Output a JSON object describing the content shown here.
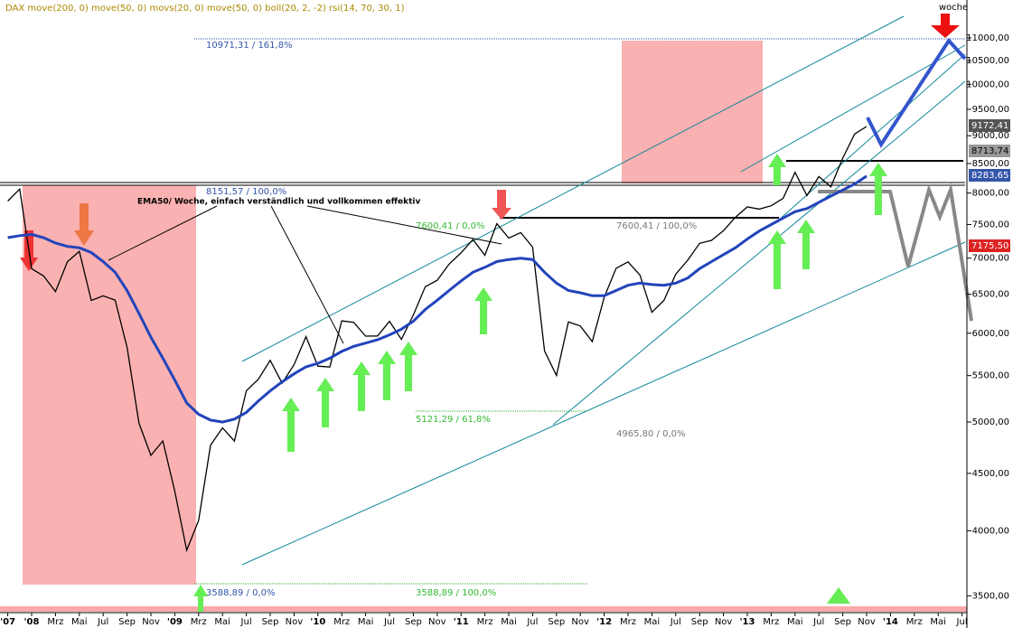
{
  "chart_data": {
    "type": "line",
    "title": "DAX move(200, 0) move(50, 0) movs(20, 0) move(50, 0) boll(20, 2, -2) rsi(14, 70, 30, 1)",
    "period": "woche",
    "log_scale": true,
    "grid": false,
    "categories": [
      "'07",
      null,
      "'08",
      null,
      "Mrz",
      null,
      "Mai",
      null,
      "Jul",
      null,
      "Sep",
      null,
      "Nov",
      null,
      "'09",
      null,
      "Mrz",
      null,
      "Mai",
      null,
      "Jul",
      null,
      "Sep",
      null,
      "Nov",
      null,
      "'10",
      null,
      "Mrz",
      null,
      "Mai",
      null,
      "Jul",
      null,
      "Sep",
      null,
      "Nov",
      null,
      "'11",
      null,
      "Mrz",
      null,
      "Mai",
      null,
      "Jul",
      null,
      "Sep",
      null,
      "Nov",
      null,
      "'12",
      null,
      "Mrz",
      null,
      "Mai",
      null,
      "Jul",
      null,
      "Sep",
      null,
      "Nov",
      null,
      "'13",
      null,
      "Mrz",
      null,
      "Mai",
      null,
      "Jul",
      null,
      "Sep",
      null,
      "Nov",
      null,
      "'14",
      null,
      "Mrz",
      null,
      "Mai",
      null,
      "Jul",
      null
    ],
    "series": [
      {
        "color": "#000000",
        "values": [
          7870,
          8067,
          6851,
          6748,
          6535,
          6949,
          7097,
          6418,
          6479,
          6422,
          5831,
          4988,
          4669,
          4810,
          4338,
          3843,
          4085,
          4769,
          4941,
          4809,
          5332,
          5458,
          5675,
          5415,
          5625,
          5957,
          5608,
          5598,
          6154,
          6136,
          5964,
          5966,
          6148,
          5925,
          6229,
          6601,
          6688,
          6914,
          7077,
          7272,
          7041,
          7514,
          7294,
          7376,
          7159,
          5785,
          5502,
          6141,
          6089,
          5898,
          6458,
          6856,
          6947,
          6761,
          6264,
          6416,
          6772,
          6970,
          7216,
          7260,
          7405,
          7612,
          7776,
          7741,
          7795,
          7914,
          8348,
          7959,
          8276,
          8103,
          8594,
          9033,
          9172,
          null,
          null,
          null,
          null,
          null,
          null,
          null,
          null,
          null
        ]
      },
      {
        "color": "#2244bb",
        "values": [
          7300,
          7330,
          7350,
          7300,
          7220,
          7170,
          7150,
          7080,
          6950,
          6800,
          6550,
          6250,
          5950,
          5700,
          5450,
          5200,
          5080,
          5020,
          5000,
          5030,
          5100,
          5220,
          5330,
          5430,
          5520,
          5600,
          5640,
          5700,
          5780,
          5840,
          5880,
          5920,
          5980,
          6050,
          6150,
          6300,
          6420,
          6550,
          6680,
          6800,
          6870,
          6950,
          6980,
          7000,
          6980,
          6800,
          6650,
          6550,
          6520,
          6480,
          6480,
          6550,
          6620,
          6650,
          6630,
          6620,
          6650,
          6720,
          6850,
          6950,
          7050,
          7150,
          7280,
          7400,
          7500,
          7600,
          7700,
          7750,
          7850,
          7950,
          8050,
          8150,
          8283,
          null,
          null,
          null,
          null,
          null,
          null,
          null,
          null,
          null
        ]
      }
    ],
    "ylim": [
      3400,
      11500
    ],
    "yticks": [
      {
        "value": 3500,
        "label": "3500,00"
      },
      {
        "value": 4000,
        "label": "4000,00"
      },
      {
        "value": 4500,
        "label": "4500,00"
      },
      {
        "value": 5000,
        "label": "5000,00"
      },
      {
        "value": 5500,
        "label": "5500,00"
      },
      {
        "value": 6000,
        "label": "6000,00"
      },
      {
        "value": 6500,
        "label": "6500,00"
      },
      {
        "value": 7000,
        "label": "7000,00"
      },
      {
        "value": 7500,
        "label": "7500,00"
      },
      {
        "value": 8000,
        "label": "8000,00"
      },
      {
        "value": 8500,
        "label": "8500,00"
      },
      {
        "value": 9000,
        "label": "9000,00"
      },
      {
        "value": 9500,
        "label": "9500,00"
      },
      {
        "value": 10000,
        "label": "10000,00"
      },
      {
        "value": 10500,
        "label": "10500,00"
      },
      {
        "value": 11000,
        "label": "11000,00"
      }
    ],
    "annotations": {
      "fib_top": "10971,31 / 161,8%",
      "fib_8151": "8151,57 / 100,0%",
      "fib_7600_a": "7600,41 / 0,0%",
      "fib_7600_b": "7600,41 / 100,0%",
      "fib_5121": "5121,29 / 61,8%",
      "fib_4965": "4965,80 / 0,0%",
      "fib_3588_a": "3588,89 / 0,0%",
      "fib_3588_b": "3588,89 / 100,0%",
      "ema_note": "EMA50/ Woche, einfach verständlich und vollkommen effektiv",
      "price_last": "9172,41",
      "price_8713": "8713,74",
      "price_ema": "8283,65",
      "price_7175": "7175,50"
    }
  }
}
